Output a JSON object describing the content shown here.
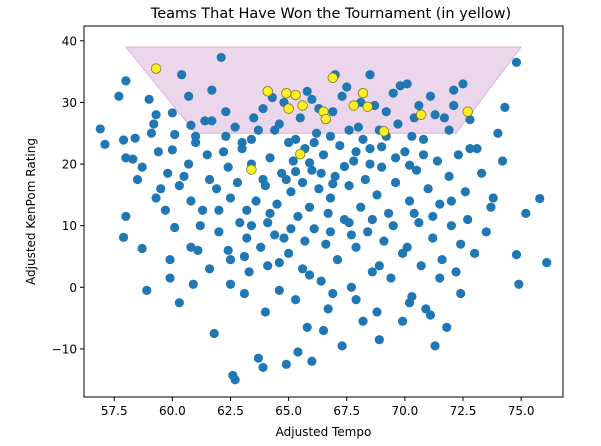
{
  "chart_data": {
    "type": "scatter",
    "title": "Teams That Have Won the Tournament (in yellow)",
    "xlabel": "Adjusted Tempo",
    "ylabel": "Adjusted KenPom Rating",
    "xlim": [
      56.2,
      76.8
    ],
    "ylim": [
      -17.8,
      42.4
    ],
    "xticks": [
      57.5,
      60.0,
      62.5,
      65.0,
      67.5,
      70.0,
      72.5,
      75.0
    ],
    "xtick_labels": [
      "57.5",
      "60.0",
      "62.5",
      "65.0",
      "67.5",
      "70.0",
      "72.5",
      "75.0"
    ],
    "yticks": [
      -10,
      0,
      10,
      20,
      30,
      40
    ],
    "ytick_labels": [
      "−10",
      "0",
      "10",
      "20",
      "30",
      "40"
    ],
    "grid": false,
    "colors": {
      "teams": "#1f77b4",
      "winners": "#ffee22",
      "winner_edge": "#7a7a1a",
      "region_fill": "#ecd6ec",
      "region_edge": "#d8b8d8"
    },
    "winner_region": {
      "top": [
        [
          58.0,
          39.0
        ],
        [
          75.0,
          39.0
        ]
      ],
      "bottom": [
        [
          61.0,
          25.0
        ],
        [
          72.2,
          25.0
        ]
      ]
    },
    "series": [
      {
        "role": "teams",
        "points": [
          [
            56.9,
            25.7
          ],
          [
            57.1,
            23.2
          ],
          [
            57.7,
            31.0
          ],
          [
            57.9,
            23.9
          ],
          [
            58.0,
            33.5
          ],
          [
            58.0,
            11.5
          ],
          [
            57.9,
            8.1
          ],
          [
            58.0,
            21.0
          ],
          [
            58.3,
            20.8
          ],
          [
            58.4,
            24.2
          ],
          [
            58.5,
            17.5
          ],
          [
            58.7,
            6.3
          ],
          [
            58.9,
            -0.5
          ],
          [
            59.1,
            25.0
          ],
          [
            59.2,
            26.5
          ],
          [
            59.3,
            28.0
          ],
          [
            59.3,
            14.5
          ],
          [
            59.5,
            16.0
          ],
          [
            59.7,
            12.5
          ],
          [
            59.8,
            18.5
          ],
          [
            59.9,
            4.5
          ],
          [
            59.9,
            1.5
          ],
          [
            60.0,
            28.3
          ],
          [
            60.0,
            22.3
          ],
          [
            60.1,
            9.7
          ],
          [
            60.3,
            16.5
          ],
          [
            60.3,
            -2.5
          ],
          [
            60.7,
            20.0
          ],
          [
            60.7,
            31.0
          ],
          [
            60.8,
            26.3
          ],
          [
            60.8,
            14.0
          ],
          [
            60.8,
            6.5
          ],
          [
            60.9,
            0.5
          ],
          [
            61.0,
            24.5
          ],
          [
            61.0,
            23.5
          ],
          [
            61.2,
            10.0
          ],
          [
            61.3,
            12.5
          ],
          [
            61.5,
            21.5
          ],
          [
            61.6,
            17.5
          ],
          [
            61.6,
            3.0
          ],
          [
            61.7,
            27.0
          ],
          [
            61.8,
            -7.5
          ],
          [
            61.9,
            16.0
          ],
          [
            62.0,
            12.5
          ],
          [
            62.0,
            9.0
          ],
          [
            62.1,
            37.3
          ],
          [
            62.2,
            22.0
          ],
          [
            62.4,
            19.5
          ],
          [
            62.5,
            14.5
          ],
          [
            62.5,
            0.5
          ],
          [
            62.5,
            4.5
          ],
          [
            62.6,
            -14.3
          ],
          [
            62.7,
            26.0
          ],
          [
            62.8,
            17.0
          ],
          [
            62.9,
            10.5
          ],
          [
            63.0,
            23.5
          ],
          [
            63.1,
            -1.0
          ],
          [
            63.2,
            8.0
          ],
          [
            63.2,
            12.5
          ],
          [
            63.3,
            2.5
          ],
          [
            63.4,
            20.0
          ],
          [
            63.4,
            24.0
          ],
          [
            63.6,
            14.0
          ],
          [
            63.7,
            -11.5
          ],
          [
            63.8,
            6.5
          ],
          [
            63.9,
            29.0
          ],
          [
            63.9,
            17.5
          ],
          [
            64.0,
            -4.0
          ],
          [
            64.1,
            10.5
          ],
          [
            64.1,
            3.5
          ],
          [
            64.2,
            21.0
          ],
          [
            64.3,
            30.8
          ],
          [
            64.4,
            25.5
          ],
          [
            64.5,
            13.5
          ],
          [
            64.6,
            -0.5
          ],
          [
            64.7,
            18.5
          ],
          [
            64.8,
            8.0
          ],
          [
            64.9,
            -12.5
          ],
          [
            65.0,
            5.5
          ],
          [
            65.0,
            23.5
          ],
          [
            65.1,
            15.5
          ],
          [
            65.2,
            20.5
          ],
          [
            65.3,
            -2.0
          ],
          [
            65.4,
            11.5
          ],
          [
            65.5,
            27.5
          ],
          [
            65.6,
            17.0
          ],
          [
            65.6,
            3.0
          ],
          [
            65.7,
            22.5
          ],
          [
            65.8,
            -6.5
          ],
          [
            65.9,
            13.0
          ],
          [
            66.0,
            19.0
          ],
          [
            66.0,
            30.5
          ],
          [
            66.1,
            9.5
          ],
          [
            66.2,
            25.0
          ],
          [
            66.3,
            16.0
          ],
          [
            66.4,
            1.0
          ],
          [
            66.5,
            21.5
          ],
          [
            66.6,
            7.0
          ],
          [
            66.7,
            -3.5
          ],
          [
            66.8,
            14.5
          ],
          [
            66.9,
            28.5
          ],
          [
            67.0,
            18.0
          ],
          [
            67.1,
            4.5
          ],
          [
            67.2,
            23.0
          ],
          [
            67.3,
            -9.5
          ],
          [
            67.4,
            11.0
          ],
          [
            67.5,
            32.5
          ],
          [
            67.6,
            16.5
          ],
          [
            67.7,
            0.0
          ],
          [
            67.8,
            20.5
          ],
          [
            67.9,
            6.5
          ],
          [
            68.0,
            26.0
          ],
          [
            68.1,
            13.0
          ],
          [
            68.2,
            -5.5
          ],
          [
            68.3,
            17.5
          ],
          [
            68.4,
            9.0
          ],
          [
            68.5,
            22.5
          ],
          [
            68.6,
            2.5
          ],
          [
            68.7,
            29.5
          ],
          [
            68.8,
            15.0
          ],
          [
            68.9,
            -8.5
          ],
          [
            69.0,
            19.5
          ],
          [
            69.1,
            7.5
          ],
          [
            69.2,
            24.5
          ],
          [
            69.3,
            12.0
          ],
          [
            69.4,
            1.5
          ],
          [
            69.5,
            31.5
          ],
          [
            69.6,
            17.0
          ],
          [
            69.8,
            32.7
          ],
          [
            69.9,
            5.5
          ],
          [
            70.0,
            22.0
          ],
          [
            70.1,
            33.0
          ],
          [
            70.2,
            14.0
          ],
          [
            70.3,
            -1.5
          ],
          [
            70.4,
            27.5
          ],
          [
            70.5,
            19.0
          ],
          [
            70.6,
            10.5
          ],
          [
            70.7,
            3.5
          ],
          [
            70.8,
            24.0
          ],
          [
            70.9,
            -3.5
          ],
          [
            71.0,
            16.0
          ],
          [
            71.1,
            31.0
          ],
          [
            71.2,
            8.0
          ],
          [
            71.3,
            -9.5
          ],
          [
            71.4,
            20.5
          ],
          [
            71.5,
            13.5
          ],
          [
            71.6,
            4.5
          ],
          [
            71.7,
            27.5
          ],
          [
            71.8,
            -6.5
          ],
          [
            71.9,
            18.0
          ],
          [
            72.0,
            10.0
          ],
          [
            72.1,
            32.0
          ],
          [
            72.2,
            2.5
          ],
          [
            72.3,
            21.5
          ],
          [
            72.4,
            7.0
          ],
          [
            72.5,
            33.0
          ],
          [
            72.6,
            15.5
          ],
          [
            72.7,
            11.0
          ],
          [
            72.8,
            27.2
          ],
          [
            73.0,
            5.5
          ],
          [
            73.1,
            22.5
          ],
          [
            73.3,
            18.5
          ],
          [
            73.5,
            9.0
          ],
          [
            73.8,
            14.5
          ],
          [
            74.0,
            25.0
          ],
          [
            74.2,
            20.5
          ],
          [
            74.3,
            29.2
          ],
          [
            74.8,
            36.5
          ],
          [
            74.8,
            5.3
          ],
          [
            74.9,
            0.5
          ],
          [
            75.2,
            12.0
          ],
          [
            75.8,
            14.4
          ],
          [
            76.1,
            4.0
          ],
          [
            60.4,
            34.5
          ],
          [
            61.7,
            32.0
          ],
          [
            59.0,
            30.5
          ],
          [
            60.5,
            18.0
          ],
          [
            62.3,
            28.5
          ],
          [
            63.5,
            27.5
          ],
          [
            64.4,
            8.5
          ],
          [
            65.1,
            9.5
          ],
          [
            66.0,
            -12.0
          ],
          [
            66.7,
            12.0
          ],
          [
            67.7,
            8.5
          ],
          [
            68.9,
            3.5
          ],
          [
            70.1,
            6.5
          ],
          [
            71.5,
            1.5
          ],
          [
            72.4,
            -1.0
          ],
          [
            62.7,
            -15.0
          ],
          [
            63.9,
            -13.0
          ],
          [
            65.4,
            -10.5
          ],
          [
            66.5,
            -7.0
          ],
          [
            67.0,
            34.5
          ],
          [
            68.5,
            34.5
          ],
          [
            69.9,
            -5.5
          ],
          [
            71.9,
            25.5
          ],
          [
            72.8,
            22.5
          ],
          [
            73.7,
            13.0
          ],
          [
            64.8,
            30.0
          ],
          [
            65.8,
            31.8
          ],
          [
            66.3,
            29.0
          ],
          [
            67.3,
            31.0
          ],
          [
            68.1,
            30.0
          ],
          [
            69.2,
            28.5
          ],
          [
            70.6,
            29.5
          ],
          [
            71.3,
            28.0
          ],
          [
            72.1,
            29.5
          ],
          [
            61.4,
            27.0
          ],
          [
            60.1,
            24.8
          ],
          [
            59.4,
            22.0
          ],
          [
            58.7,
            19.5
          ],
          [
            61.1,
            6.0
          ],
          [
            62.4,
            6.0
          ],
          [
            63.1,
            5.0
          ],
          [
            64.6,
            4.0
          ],
          [
            65.9,
            2.0
          ],
          [
            66.9,
            -1.0
          ],
          [
            67.9,
            -2.0
          ],
          [
            68.8,
            -4.0
          ],
          [
            70.2,
            -2.5
          ],
          [
            71.1,
            -4.5
          ],
          [
            63.4,
            10.0
          ],
          [
            64.2,
            12.0
          ],
          [
            65.7,
            7.5
          ],
          [
            66.8,
            9.0
          ],
          [
            67.6,
            10.5
          ],
          [
            68.6,
            11.0
          ],
          [
            69.5,
            10.0
          ],
          [
            70.4,
            12.0
          ],
          [
            71.2,
            11.5
          ],
          [
            72.0,
            14.0
          ],
          [
            64.0,
            16.5
          ],
          [
            64.9,
            17.5
          ],
          [
            65.3,
            18.8
          ],
          [
            65.9,
            20.2
          ],
          [
            66.4,
            18.5
          ],
          [
            66.9,
            16.8
          ],
          [
            67.4,
            19.6
          ],
          [
            67.9,
            22.0
          ],
          [
            68.5,
            20.0
          ],
          [
            69.0,
            22.8
          ],
          [
            69.6,
            21.0
          ],
          [
            70.2,
            19.8
          ],
          [
            70.8,
            21.5
          ],
          [
            63.0,
            22.5
          ],
          [
            62.3,
            24.5
          ],
          [
            63.7,
            25.5
          ],
          [
            64.6,
            26.5
          ],
          [
            65.3,
            24.0
          ],
          [
            66.1,
            23.5
          ],
          [
            66.8,
            24.5
          ],
          [
            67.6,
            25.5
          ],
          [
            68.2,
            24.0
          ],
          [
            68.9,
            25.5
          ],
          [
            69.7,
            26.5
          ],
          [
            70.3,
            24.5
          ]
        ]
      },
      {
        "role": "winners",
        "points": [
          [
            59.3,
            35.5
          ],
          [
            64.1,
            31.8
          ],
          [
            64.9,
            31.5
          ],
          [
            65.3,
            31.2
          ],
          [
            65.0,
            29.0
          ],
          [
            65.6,
            29.5
          ],
          [
            66.5,
            28.5
          ],
          [
            66.6,
            27.3
          ],
          [
            66.9,
            34.0
          ],
          [
            67.8,
            29.5
          ],
          [
            68.2,
            31.5
          ],
          [
            68.4,
            29.3
          ],
          [
            69.1,
            25.3
          ],
          [
            70.7,
            28.0
          ],
          [
            72.7,
            28.5
          ],
          [
            65.5,
            21.6
          ],
          [
            63.4,
            19.1
          ]
        ]
      }
    ]
  }
}
